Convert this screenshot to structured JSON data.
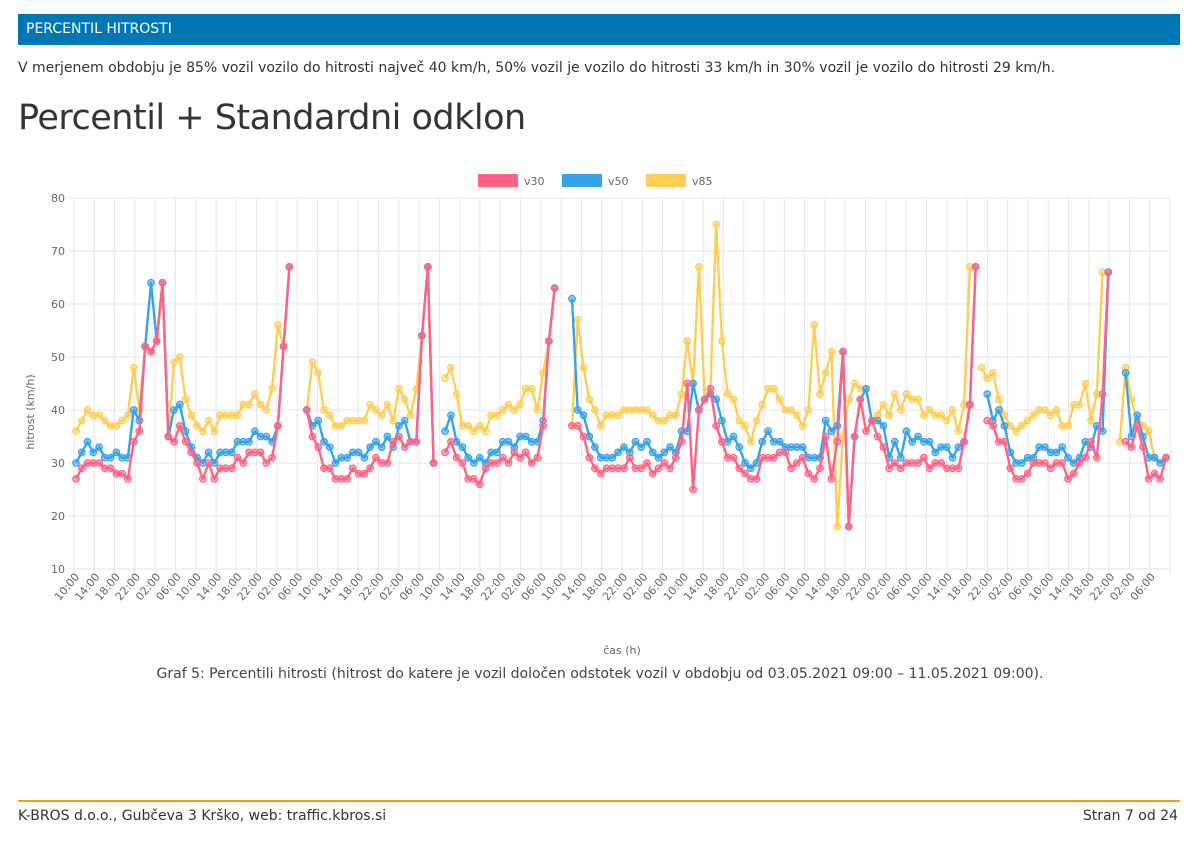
{
  "header": {
    "section_title": "PERCENTIL HITROSTI"
  },
  "intro_text": "V merjenem obdobju je 85% vozil vozilo do hitrosti največ 40 km/h, 50% vozil je vozilo do hitrosti 33 km/h in 30% vozil je vozilo do hitrosti 29 km/h.",
  "heading": "Percentil + Standardni odklon",
  "caption": "Graf 5: Percentili hitrosti (hitrost do katere je vozil določen odstotek vozil v obdobju od 03.05.2021 09:00 – 11.05.2021 09:00).",
  "footer": {
    "left": "K-BROS d.o.o., Gubčeva 3 Krško, web: traffic.kbros.si",
    "right": "Stran 7 od 24"
  },
  "chart_data": {
    "type": "line",
    "xlabel": "čas (h)",
    "ylabel": "hitrost (km/h)",
    "ylim": [
      10,
      80
    ],
    "yticks": [
      10,
      20,
      30,
      40,
      50,
      60,
      70,
      80
    ],
    "grid": true,
    "legend_position": "top-center",
    "x_tick_labels": [
      "10:00",
      "14:00",
      "18:00",
      "22:00",
      "02:00",
      "06:00",
      "10:00",
      "14:00",
      "18:00",
      "22:00",
      "02:00",
      "06:00",
      "10:00",
      "14:00",
      "18:00",
      "22:00",
      "02:00",
      "06:00",
      "10:00",
      "14:00",
      "18:00",
      "22:00",
      "02:00",
      "06:00",
      "10:00",
      "14:00",
      "18:00",
      "22:00",
      "02:00",
      "06:00",
      "10:00",
      "14:00",
      "18:00",
      "22:00",
      "02:00",
      "06:00",
      "10:00",
      "14:00",
      "18:00",
      "22:00",
      "02:00",
      "06:00",
      "10:00",
      "14:00",
      "18:00",
      "22:00",
      "02:00",
      "06:00",
      "10:00",
      "14:00",
      "18:00",
      "22:00",
      "02:00",
      "06:00"
    ],
    "series": [
      {
        "name": "v30",
        "color": "#ff6384",
        "values": [
          27,
          29,
          30,
          30,
          30,
          29,
          29,
          28,
          28,
          27,
          34,
          36,
          52,
          51,
          53,
          64,
          35,
          34,
          37,
          34,
          32,
          30,
          27,
          30,
          27,
          29,
          29,
          29,
          31,
          30,
          32,
          32,
          32,
          30,
          31,
          37,
          52,
          67,
          null,
          null,
          40,
          35,
          33,
          29,
          29,
          27,
          27,
          27,
          29,
          28,
          28,
          29,
          31,
          30,
          30,
          34,
          35,
          33,
          34,
          34,
          54,
          67,
          30,
          null,
          32,
          34,
          31,
          30,
          27,
          27,
          26,
          29,
          30,
          30,
          31,
          30,
          32,
          31,
          32,
          30,
          31,
          37,
          53,
          63,
          null,
          null,
          37,
          37,
          35,
          31,
          29,
          28,
          29,
          29,
          29,
          29,
          31,
          29,
          29,
          30,
          28,
          29,
          30,
          29,
          31,
          34,
          45,
          25,
          40,
          42,
          44,
          37,
          34,
          31,
          31,
          29,
          28,
          27,
          27,
          31,
          31,
          31,
          32,
          32,
          29,
          30,
          31,
          28,
          27,
          29,
          35,
          27,
          34,
          51,
          18,
          35,
          42,
          36,
          38,
          35,
          33,
          29,
          30,
          29,
          30,
          30,
          30,
          31,
          29,
          30,
          30,
          29,
          29,
          29,
          34,
          41,
          67,
          null,
          38,
          37,
          34,
          34,
          29,
          27,
          27,
          28,
          30,
          30,
          30,
          29,
          30,
          30,
          27,
          28,
          30,
          31,
          34,
          31,
          43,
          66,
          null,
          null,
          34,
          33,
          37,
          33,
          27,
          28,
          27,
          31
        ]
      },
      {
        "name": "v50",
        "color": "#36a2eb",
        "values": [
          30,
          32,
          34,
          32,
          33,
          31,
          31,
          32,
          31,
          31,
          40,
          38,
          52,
          64,
          53,
          64,
          35,
          40,
          41,
          36,
          33,
          31,
          30,
          32,
          30,
          32,
          32,
          32,
          34,
          34,
          34,
          36,
          35,
          35,
          34,
          37,
          52,
          67,
          null,
          null,
          40,
          37,
          38,
          34,
          33,
          30,
          31,
          31,
          32,
          32,
          31,
          33,
          34,
          33,
          35,
          33,
          37,
          38,
          34,
          34,
          54,
          67,
          30,
          null,
          36,
          39,
          34,
          33,
          31,
          30,
          31,
          30,
          32,
          32,
          34,
          34,
          33,
          35,
          35,
          34,
          34,
          38,
          53,
          63,
          null,
          null,
          61,
          40,
          39,
          35,
          33,
          31,
          31,
          31,
          32,
          33,
          32,
          34,
          33,
          34,
          32,
          31,
          32,
          33,
          32,
          36,
          36,
          45,
          40,
          42,
          43,
          42,
          38,
          34,
          35,
          33,
          30,
          29,
          30,
          34,
          36,
          34,
          34,
          33,
          33,
          33,
          33,
          31,
          31,
          31,
          38,
          36,
          37,
          51,
          18,
          35,
          42,
          44,
          38,
          38,
          37,
          31,
          34,
          31,
          36,
          34,
          35,
          34,
          34,
          32,
          33,
          33,
          31,
          33,
          34,
          41,
          67,
          null,
          43,
          38,
          40,
          37,
          32,
          30,
          30,
          31,
          31,
          33,
          33,
          32,
          32,
          33,
          31,
          30,
          31,
          34,
          33,
          37,
          36,
          66,
          null,
          null,
          47,
          35,
          39,
          35,
          31,
          31,
          30,
          31
        ]
      },
      {
        "name": "v85",
        "color": "#ffcd56",
        "values": [
          36,
          38,
          40,
          39,
          39,
          38,
          37,
          37,
          38,
          39,
          48,
          40,
          52,
          51,
          53,
          64,
          35,
          49,
          50,
          42,
          39,
          37,
          36,
          38,
          36,
          39,
          39,
          39,
          39,
          41,
          41,
          43,
          41,
          40,
          44,
          56,
          52,
          67,
          null,
          null,
          40,
          49,
          47,
          40,
          39,
          37,
          37,
          38,
          38,
          38,
          38,
          41,
          40,
          39,
          41,
          38,
          44,
          42,
          39,
          44,
          54,
          67,
          30,
          null,
          46,
          48,
          43,
          37,
          37,
          36,
          37,
          36,
          39,
          39,
          40,
          41,
          40,
          41,
          44,
          44,
          40,
          47,
          53,
          63,
          null,
          null,
          37,
          57,
          48,
          42,
          40,
          37,
          39,
          39,
          39,
          40,
          40,
          40,
          40,
          40,
          39,
          38,
          38,
          39,
          39,
          43,
          53,
          45,
          67,
          42,
          44,
          75,
          53,
          43,
          42,
          38,
          37,
          34,
          38,
          41,
          44,
          44,
          42,
          40,
          40,
          39,
          37,
          40,
          56,
          43,
          47,
          51,
          18,
          35,
          42,
          45,
          44,
          44,
          38,
          39,
          41,
          39,
          43,
          40,
          43,
          42,
          42,
          39,
          40,
          39,
          39,
          38,
          40,
          36,
          41,
          67,
          null,
          48,
          46,
          47,
          42,
          39,
          37,
          36,
          37,
          38,
          39,
          40,
          40,
          39,
          40,
          37,
          37,
          41,
          41,
          45,
          38,
          43,
          66,
          null,
          null,
          34,
          48,
          42,
          38,
          37,
          36,
          31
        ]
      }
    ]
  }
}
